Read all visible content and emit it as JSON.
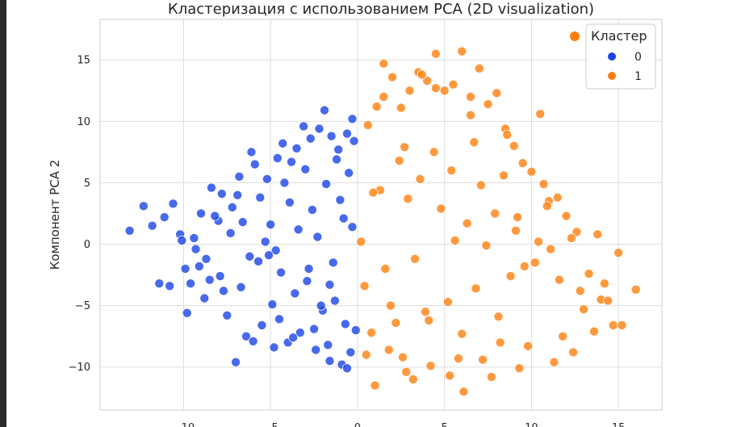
{
  "chart_data": {
    "type": "scatter",
    "title": "Кластеризация с использованием PCA (2D visualization)",
    "xlabel": "",
    "ylabel": "Компонент PCA 2",
    "xlim": [
      -14.8,
      17.5
    ],
    "ylim": [
      -13.5,
      18.3
    ],
    "xticks": [
      -10,
      -5,
      0,
      5,
      10,
      15
    ],
    "yticks": [
      -10,
      -5,
      0,
      5,
      10,
      15
    ],
    "xtick_labels": [
      "−10",
      "−5",
      "0",
      "5",
      "10",
      "15"
    ],
    "ytick_labels": [
      "−10",
      "−5",
      "0",
      "5",
      "10",
      "15"
    ],
    "grid": true,
    "legend": {
      "title": "Кластер",
      "placement": "top-right"
    },
    "series": [
      {
        "name": "0",
        "color": "#1a44e6",
        "x": [
          -13.1,
          -12.3,
          -11.8,
          -11.1,
          -10.6,
          -10.2,
          -9.9,
          -9.4,
          -9.0,
          -8.7,
          -8.4,
          -8.0,
          -7.7,
          -7.2,
          -6.8,
          -6.1,
          -5.9,
          -5.2,
          -4.6,
          -4.3,
          -3.8,
          -3.5,
          -3.1,
          -2.7,
          -2.2,
          -1.9,
          -1.5,
          -1.1,
          -0.6,
          -0.3,
          -0.2,
          -9.6,
          -8.8,
          -7.5,
          -6.4,
          -5.5,
          -4.9,
          -4.0,
          -3.3,
          -2.4,
          -1.6,
          -0.9,
          -0.4,
          -10.1,
          -9.1,
          -7.9,
          -6.7,
          -5.7,
          -4.4,
          -3.6,
          -2.9,
          -2.0,
          -1.3,
          -0.7,
          -0.1,
          -11.4,
          -10.8,
          -9.8,
          -8.5,
          -7.3,
          -6.2,
          -5.0,
          -3.9,
          -2.6,
          -1.8,
          -1.0,
          -0.5,
          -8.2,
          -6.9,
          -5.3,
          -4.7,
          -3.4,
          -2.3,
          -1.4,
          -0.8,
          -7.0,
          -6.0,
          -4.8,
          -3.7,
          -2.5,
          -1.7,
          -0.6,
          -5.6,
          -4.2,
          -3.0,
          -1.2,
          -0.3,
          -2.8,
          -1.6,
          -5.1,
          -6.6,
          -7.8,
          -9.3,
          -2.1,
          -4.5
        ],
        "y": [
          1.1,
          3.1,
          1.5,
          2.2,
          3.3,
          0.8,
          -2.0,
          0.5,
          2.5,
          -1.2,
          4.6,
          1.9,
          -3.8,
          3.0,
          5.5,
          7.5,
          6.5,
          5.3,
          7.0,
          8.2,
          6.7,
          7.8,
          9.6,
          8.6,
          9.4,
          10.9,
          8.8,
          7.7,
          9.0,
          10.2,
          8.4,
          -3.2,
          -4.4,
          -5.8,
          -7.5,
          -6.6,
          -4.9,
          -8.0,
          -7.2,
          -8.6,
          -9.5,
          -9.8,
          -8.8,
          0.3,
          -1.8,
          -2.6,
          -3.5,
          -1.4,
          -2.3,
          -4.0,
          -3.0,
          -5.4,
          -4.6,
          -6.5,
          -7.0,
          -3.2,
          -3.4,
          -5.6,
          -2.9,
          0.9,
          -1.0,
          1.6,
          3.4,
          2.8,
          4.9,
          3.6,
          5.8,
          2.3,
          4.0,
          0.2,
          -0.5,
          1.2,
          0.6,
          -1.5,
          2.1,
          -9.6,
          -7.9,
          -8.4,
          -7.6,
          -6.9,
          -8.2,
          -10.1,
          3.8,
          5.0,
          6.1,
          6.9,
          1.4,
          -2.0,
          -3.3,
          -0.9,
          1.8,
          4.1,
          -0.4,
          -5.0,
          -6.1
        ]
      },
      {
        "name": "1",
        "color": "#ff7f0e",
        "x": [
          0.2,
          0.6,
          1.1,
          1.5,
          2.0,
          2.5,
          3.0,
          3.5,
          4.0,
          4.5,
          5.0,
          5.5,
          6.0,
          6.5,
          7.0,
          7.5,
          8.0,
          8.5,
          9.0,
          9.5,
          10.0,
          10.5,
          11.0,
          11.5,
          12.0,
          12.6,
          13.3,
          14.0,
          14.7,
          15.2,
          16.0,
          1.5,
          3.7,
          4.5,
          6.5,
          8.6,
          10.7,
          1.0,
          2.8,
          3.2,
          5.3,
          6.1,
          7.7,
          9.3,
          11.3,
          12.4,
          13.6,
          14.4,
          0.5,
          1.8,
          2.6,
          4.2,
          5.8,
          7.2,
          8.2,
          9.8,
          11.8,
          13.0,
          14.2,
          15.0,
          0.8,
          2.2,
          3.9,
          5.2,
          6.8,
          8.8,
          10.2,
          11.1,
          12.3,
          13.8,
          1.3,
          2.9,
          4.8,
          6.3,
          7.9,
          9.1,
          10.4,
          0.4,
          1.6,
          3.3,
          5.6,
          7.4,
          9.6,
          11.6,
          12.8,
          2.4,
          4.4,
          6.7,
          8.4,
          10.9,
          0.9,
          3.6,
          5.4,
          7.1,
          9.2,
          1.9,
          4.1,
          6.0,
          8.1,
          2.7
        ],
        "y": [
          0.2,
          9.7,
          11.2,
          12.0,
          13.6,
          11.1,
          12.5,
          14.0,
          13.3,
          15.5,
          12.5,
          13.0,
          15.7,
          12.0,
          14.3,
          11.4,
          12.3,
          9.4,
          8.0,
          6.6,
          5.9,
          10.6,
          3.5,
          3.8,
          2.3,
          1.0,
          -2.4,
          -4.5,
          -6.6,
          -6.6,
          -3.7,
          14.7,
          13.8,
          12.7,
          10.5,
          8.9,
          4.9,
          -11.5,
          -10.4,
          -11.0,
          -10.7,
          -12.0,
          -10.8,
          -10.1,
          -9.6,
          -8.8,
          -7.1,
          -4.6,
          -9.0,
          -8.6,
          -9.2,
          -9.9,
          -9.3,
          -9.4,
          -8.0,
          -8.3,
          -7.5,
          -5.3,
          -3.2,
          -0.7,
          -7.2,
          -6.4,
          -5.5,
          -4.7,
          -3.6,
          -2.6,
          -1.5,
          -0.4,
          0.5,
          0.8,
          4.4,
          3.7,
          2.9,
          1.7,
          2.5,
          1.1,
          0.2,
          -3.4,
          -2.0,
          -1.2,
          0.3,
          -0.1,
          -1.8,
          -2.9,
          -3.8,
          6.8,
          7.5,
          8.3,
          5.6,
          3.1,
          4.2,
          5.3,
          6.0,
          4.8,
          2.2,
          -5.0,
          -6.2,
          -7.3,
          -5.9,
          7.9
        ]
      }
    ]
  }
}
